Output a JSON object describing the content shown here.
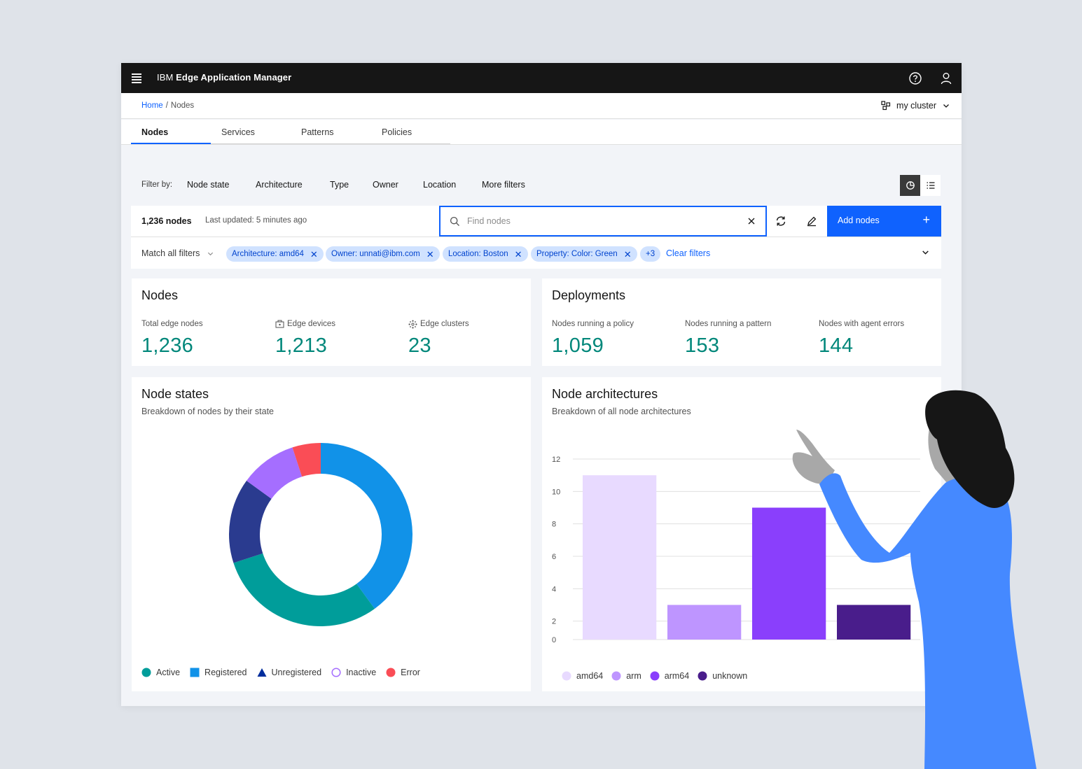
{
  "app": {
    "brand_prefix": "IBM",
    "brand_name": "Edge Application Manager",
    "icons": {
      "menu": "hamburger-icon",
      "help": "help-icon",
      "user": "user-icon"
    }
  },
  "breadcrumb": {
    "home": "Home",
    "separator": "/",
    "current": "Nodes"
  },
  "cluster": {
    "label": "my cluster",
    "icon": "cluster-icon"
  },
  "tabs": [
    {
      "label": "Nodes",
      "active": true
    },
    {
      "label": "Services",
      "active": false
    },
    {
      "label": "Patterns",
      "active": false
    },
    {
      "label": "Policies",
      "active": false
    }
  ],
  "filters": {
    "label": "Filter by:",
    "buttons": [
      "Node state",
      "Architecture",
      "Type",
      "Owner",
      "Location",
      "More filters"
    ]
  },
  "toolbar": {
    "count": "1,236 nodes",
    "updated": "Last updated: 5 minutes ago",
    "search_placeholder": "Find nodes",
    "add_label": "Add nodes",
    "add_icon": "+"
  },
  "chips": {
    "match": "Match all filters",
    "items": [
      "Architecture: amd64",
      "Owner: unnati@ibm.com",
      "Location: Boston",
      "Property: Color: Green",
      "+3"
    ],
    "clear": "Clear filters"
  },
  "nodes_card": {
    "title": "Nodes",
    "stats": [
      {
        "label": "Total edge nodes",
        "value": "1,236",
        "icon": ""
      },
      {
        "label": "Edge devices",
        "value": "1,213",
        "icon": "device-icon"
      },
      {
        "label": "Edge clusters",
        "value": "23",
        "icon": "cluster-icon"
      }
    ]
  },
  "deployments_card": {
    "title": "Deployments",
    "stats": [
      {
        "label": "Nodes running a policy",
        "value": "1,059"
      },
      {
        "label": "Nodes running a pattern",
        "value": "153"
      },
      {
        "label": "Nodes with agent errors",
        "value": "144"
      }
    ]
  },
  "node_states": {
    "title": "Node states",
    "subtitle": "Breakdown of nodes by their state",
    "legend": [
      {
        "label": "Active",
        "color": "#009d9a",
        "shape": "circle"
      },
      {
        "label": "Registered",
        "color": "#1192e8",
        "shape": "square"
      },
      {
        "label": "Unregistered",
        "color": "#002d9c",
        "shape": "triangle"
      },
      {
        "label": "Inactive",
        "color": "#a56eff",
        "shape": "circle-outline"
      },
      {
        "label": "Error",
        "color": "#fa4d56",
        "shape": "circle"
      }
    ]
  },
  "node_arch": {
    "title": "Node architectures",
    "subtitle": "Breakdown of all node architectures",
    "legend": [
      {
        "label": "amd64",
        "color": "#e8daff"
      },
      {
        "label": "arm",
        "color": "#be95ff"
      },
      {
        "label": "arm64",
        "color": "#8a3ffc"
      },
      {
        "label": "unknown",
        "color": "#491d8b"
      }
    ]
  },
  "chart_data": [
    {
      "type": "pie",
      "donut": true,
      "title": "Node states",
      "categories": [
        "Registered",
        "Active",
        "Unregistered",
        "Inactive",
        "Error"
      ],
      "values": [
        40,
        30,
        15,
        10,
        5
      ],
      "colors": [
        "#1192e8",
        "#009d9a",
        "#2a3b8f",
        "#a56eff",
        "#fa4d56"
      ]
    },
    {
      "type": "bar",
      "title": "Node architectures",
      "categories": [
        "amd64",
        "arm",
        "arm64",
        "unknown"
      ],
      "values": [
        11,
        3,
        9,
        3
      ],
      "colors": [
        "#e8daff",
        "#be95ff",
        "#8a3ffc",
        "#491d8b"
      ],
      "ylim": [
        0,
        12
      ],
      "yticks": [
        0,
        2,
        4,
        6,
        8,
        10,
        12
      ],
      "grid": true
    }
  ]
}
